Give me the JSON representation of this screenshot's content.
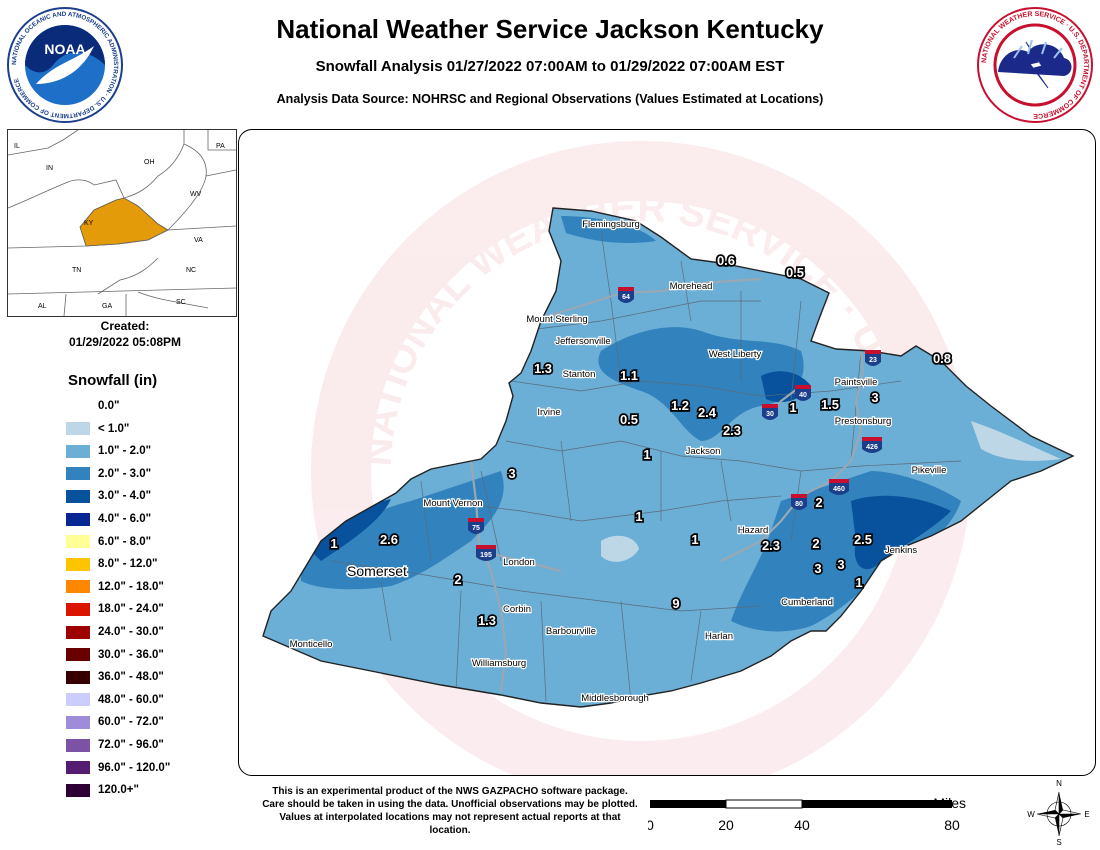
{
  "header": {
    "title": "National Weather Service Jackson Kentucky",
    "subtitle": "Snowfall Analysis 01/27/2022 07:00AM to 01/29/2022 07:00AM EST",
    "source": "Analysis Data Source: NOHRSC and Regional Observations (Values Estimated at Locations)"
  },
  "logos": {
    "noaa_label": "NOAA",
    "noaa_ring_text": "NATIONAL OCEANIC AND ATMOSPHERIC ADMINISTRATION · U.S. DEPARTMENT OF COMMERCE",
    "nws_ring_text": "NATIONAL WEATHER SERVICE · U.S. DEPARTMENT OF COMMERCE"
  },
  "inset_map": {
    "state_labels": [
      "IL",
      "IN",
      "OH",
      "PA",
      "WV",
      "KY",
      "VA",
      "TN",
      "NC",
      "AL",
      "GA",
      "SC"
    ],
    "highlight_color": "#e39b0a"
  },
  "created": {
    "label": "Created:",
    "timestamp": "01/29/2022 05:08PM"
  },
  "legend": {
    "title": "Snowfall (in)",
    "items": [
      {
        "label": "0.0\"",
        "color": "#ffffff"
      },
      {
        "label": "< 1.0\"",
        "color": "#bdd7e7"
      },
      {
        "label": "1.0\" - 2.0\"",
        "color": "#6baed6"
      },
      {
        "label": "2.0\" - 3.0\"",
        "color": "#3182bd"
      },
      {
        "label": "3.0\" - 4.0\"",
        "color": "#08519c"
      },
      {
        "label": "4.0\" - 6.0\"",
        "color": "#082694"
      },
      {
        "label": "6.0\" - 8.0\"",
        "color": "#ffff96"
      },
      {
        "label": "8.0\" - 12.0\"",
        "color": "#ffc400"
      },
      {
        "label": "12.0\" - 18.0\"",
        "color": "#ff8700"
      },
      {
        "label": "18.0\" - 24.0\"",
        "color": "#db1400"
      },
      {
        "label": "24.0\" - 30.0\"",
        "color": "#9e0000"
      },
      {
        "label": "30.0\" - 36.0\"",
        "color": "#690000"
      },
      {
        "label": "36.0\" - 48.0\"",
        "color": "#360000"
      },
      {
        "label": "48.0\" - 60.0\"",
        "color": "#ccccff"
      },
      {
        "label": "60.0\" - 72.0\"",
        "color": "#9f8cd8"
      },
      {
        "label": "72.0\" - 96.0\"",
        "color": "#7c52a5"
      },
      {
        "label": "96.0\" - 120.0\"",
        "color": "#561c72"
      },
      {
        "label": "120.0+\"",
        "color": "#2e0033"
      }
    ]
  },
  "map": {
    "watermark": "NATIONAL WEATHER SERVICE · U.S. DEPARTMENT OF COMMERCE",
    "cities": [
      "Flemingsburg",
      "Morehead",
      "Mount Sterling",
      "Jeffersonville",
      "West Liberty",
      "Stanton",
      "Paintsville",
      "Irvine",
      "Prestonsburg",
      "Jackson",
      "Pikeville",
      "Mount Vernon",
      "Hazard",
      "Jenkins",
      "Somerset",
      "London",
      "Cumberland",
      "Corbin",
      "Monticello",
      "Barbourville",
      "Harlan",
      "Williamsburg",
      "Middlesborough"
    ],
    "highways": [
      "64",
      "23",
      "40",
      "30",
      "426",
      "460",
      "80",
      "75",
      "195"
    ],
    "observations": [
      "0.6",
      "0.5",
      "0.8",
      "1.3",
      "1.1",
      "1.2",
      "2.4",
      "1",
      "1.5",
      "3",
      "0.5",
      "2.3",
      "1",
      "2",
      "3",
      "2.6",
      "1",
      "1",
      "1",
      "2.3",
      "2",
      "2.5",
      "3",
      "3",
      "1",
      "2",
      "1.3",
      "9"
    ]
  },
  "disclaimer": "This is an experimental product of the NWS GAZPACHO software package. Care should be taken in using the data. Unofficial observations may be plotted. Values at interpolated locations may not represent actual reports at that location.",
  "scale": {
    "unit": "Miles",
    "ticks": [
      "0",
      "20",
      "40",
      "80"
    ]
  },
  "compass": [
    "N",
    "E",
    "S",
    "W"
  ]
}
